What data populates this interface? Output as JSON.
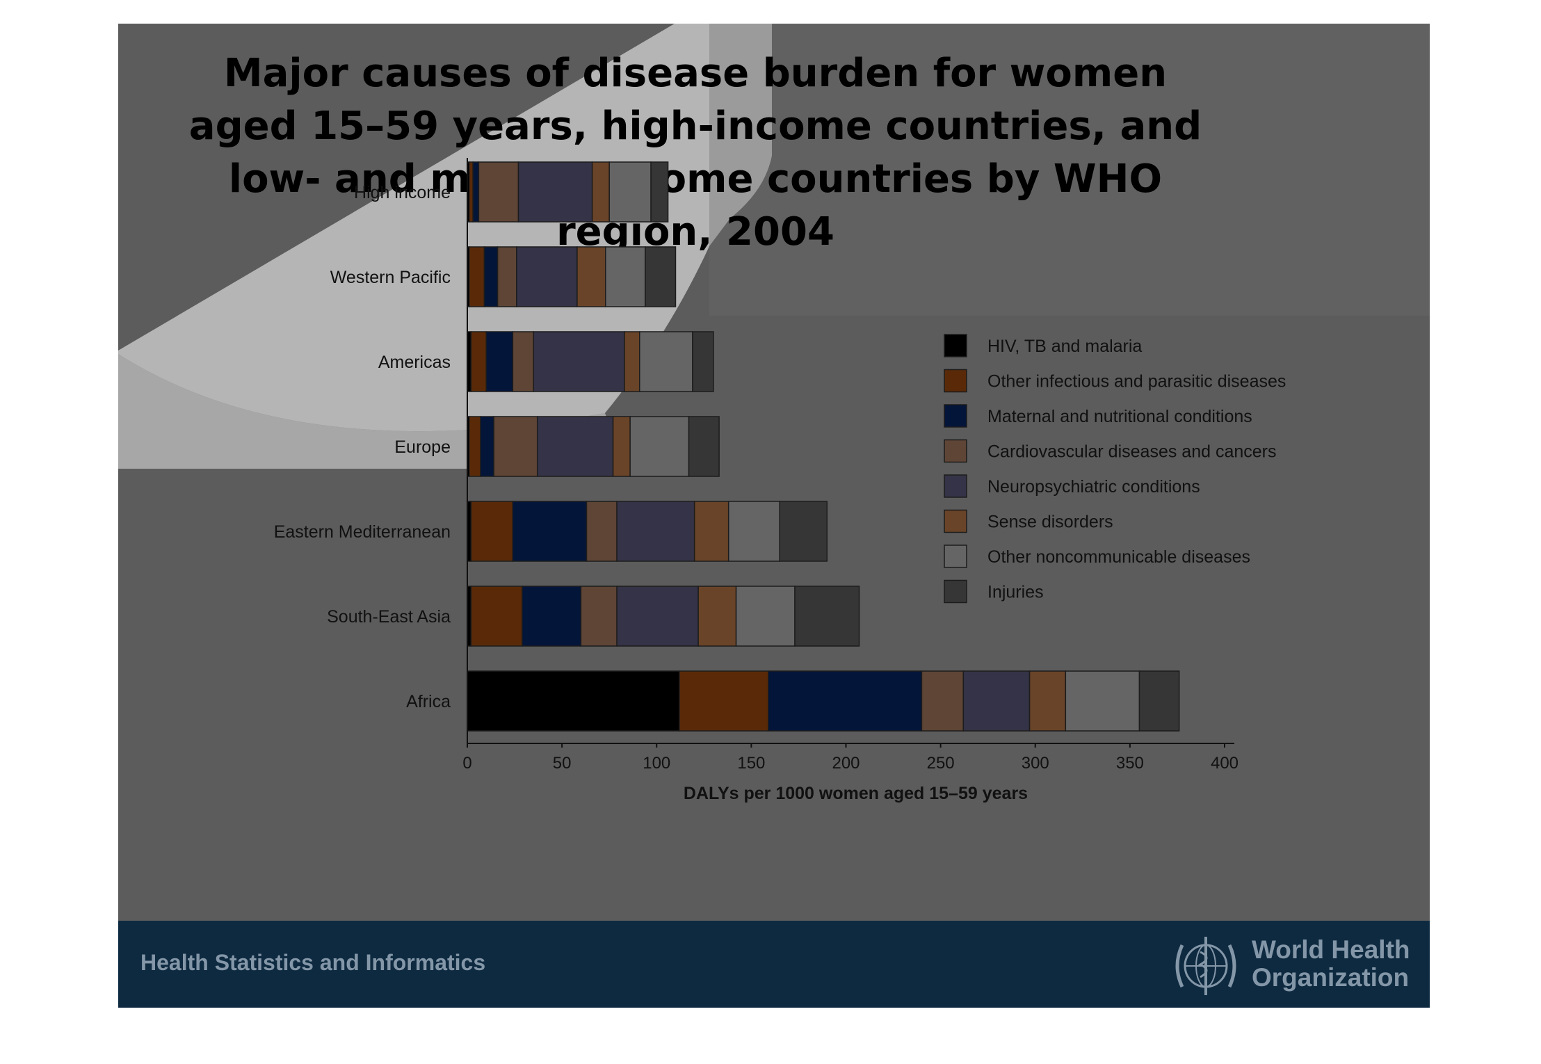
{
  "slide": {
    "title": "Major causes of disease burden for women aged 15–59 years, high-income countries, and low- and middle-income countries by WHO region, 2004",
    "footer_text": "Health Statistics and Informatics",
    "org_name_line1": "World Health",
    "org_name_line2": "Organization"
  },
  "chart_data": {
    "type": "bar",
    "orientation": "horizontal",
    "stacked": true,
    "title": "Major causes of disease burden for women aged 15–59 years, high-income countries, and low- and middle-income countries by WHO region, 2004",
    "xlabel": "DALYs per 1000 women aged 15–59 years",
    "ylabel": "",
    "xlim": [
      0,
      400
    ],
    "xticks": [
      0,
      50,
      100,
      150,
      200,
      250,
      300,
      350,
      400
    ],
    "grid": false,
    "legend_position": "right",
    "categories": [
      "High income",
      "Western Pacific",
      "Americas",
      "Europe",
      "Eastern Mediterranean",
      "South-East Asia",
      "Africa"
    ],
    "series": [
      {
        "name": "HIV, TB and malaria",
        "color": "#000000",
        "values": [
          1,
          1,
          2,
          1,
          2,
          2,
          112
        ]
      },
      {
        "name": "Other infectious and parasitic diseases",
        "color": "#5a2a08",
        "values": [
          2,
          8,
          8,
          6,
          22,
          27,
          47
        ]
      },
      {
        "name": "Maternal and nutritional conditions",
        "color": "#04153a",
        "values": [
          3,
          7,
          14,
          7,
          39,
          31,
          81
        ]
      },
      {
        "name": "Cardiovascular diseases and cancers",
        "color": "#5e4536",
        "values": [
          21,
          10,
          11,
          23,
          16,
          19,
          22
        ]
      },
      {
        "name": "Neuropsychiatric conditions",
        "color": "#353347",
        "values": [
          39,
          32,
          48,
          40,
          41,
          43,
          35
        ]
      },
      {
        "name": "Sense disorders",
        "color": "#6a4428",
        "values": [
          9,
          15,
          8,
          9,
          18,
          20,
          19
        ]
      },
      {
        "name": "Other noncommunicable diseases",
        "color": "#656565",
        "values": [
          22,
          21,
          28,
          31,
          27,
          31,
          39
        ]
      },
      {
        "name": "Injuries",
        "color": "#363636",
        "values": [
          9,
          16,
          11,
          16,
          25,
          34,
          21
        ]
      }
    ]
  }
}
